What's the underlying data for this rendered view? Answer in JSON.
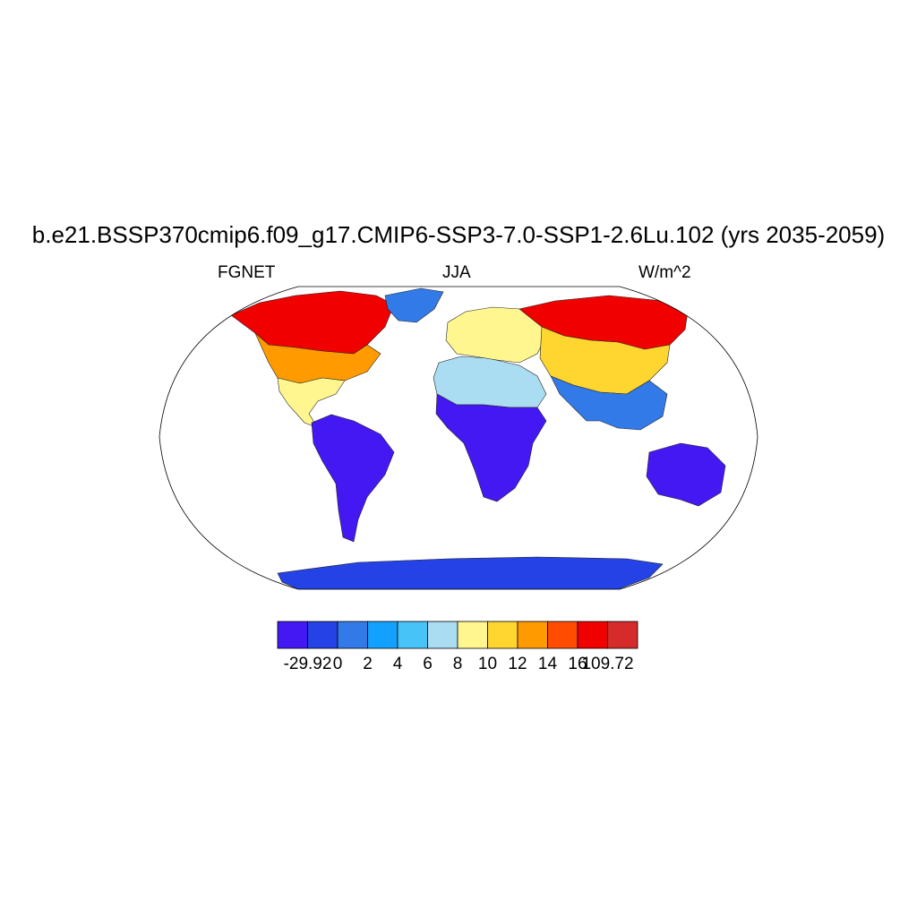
{
  "title": "b.e21.BSSP370cmip6.f09_g17.CMIP6-SSP3-7.0-SSP1-2.6Lu.102 (yrs 2035-2059)",
  "subtitle_left": "FGNET",
  "subtitle_center": "JJA",
  "subtitle_right": "W/m^2",
  "projection": "Robinson",
  "colorbar": {
    "colors": [
      "#4418f2",
      "#2442e6",
      "#337ae9",
      "#12a1ff",
      "#47c3f7",
      "#aadcf2",
      "#fff68f",
      "#ffd530",
      "#ff9a00",
      "#ff4c00",
      "#f10000",
      "#d62b2b"
    ],
    "labels": [
      "-29.92",
      "0",
      "2",
      "4",
      "6",
      "8",
      "10",
      "12",
      "14",
      "16",
      "109.72"
    ]
  },
  "map_data": {
    "type": "heatmap",
    "regions": [
      {
        "name": "North America north",
        "level": 10
      },
      {
        "name": "North America central",
        "level": 8
      },
      {
        "name": "North America south",
        "level": 6
      },
      {
        "name": "Greenland",
        "level": 2
      },
      {
        "name": "South America",
        "level": 0
      },
      {
        "name": "Africa north",
        "level": 5
      },
      {
        "name": "Africa south",
        "level": 0
      },
      {
        "name": "Europe",
        "level": 6
      },
      {
        "name": "Siberia",
        "level": 10
      },
      {
        "name": "Central Asia",
        "level": 7
      },
      {
        "name": "South Asia",
        "level": 2
      },
      {
        "name": "Australia",
        "level": 0
      },
      {
        "name": "Antarctica",
        "level": 1
      }
    ]
  }
}
